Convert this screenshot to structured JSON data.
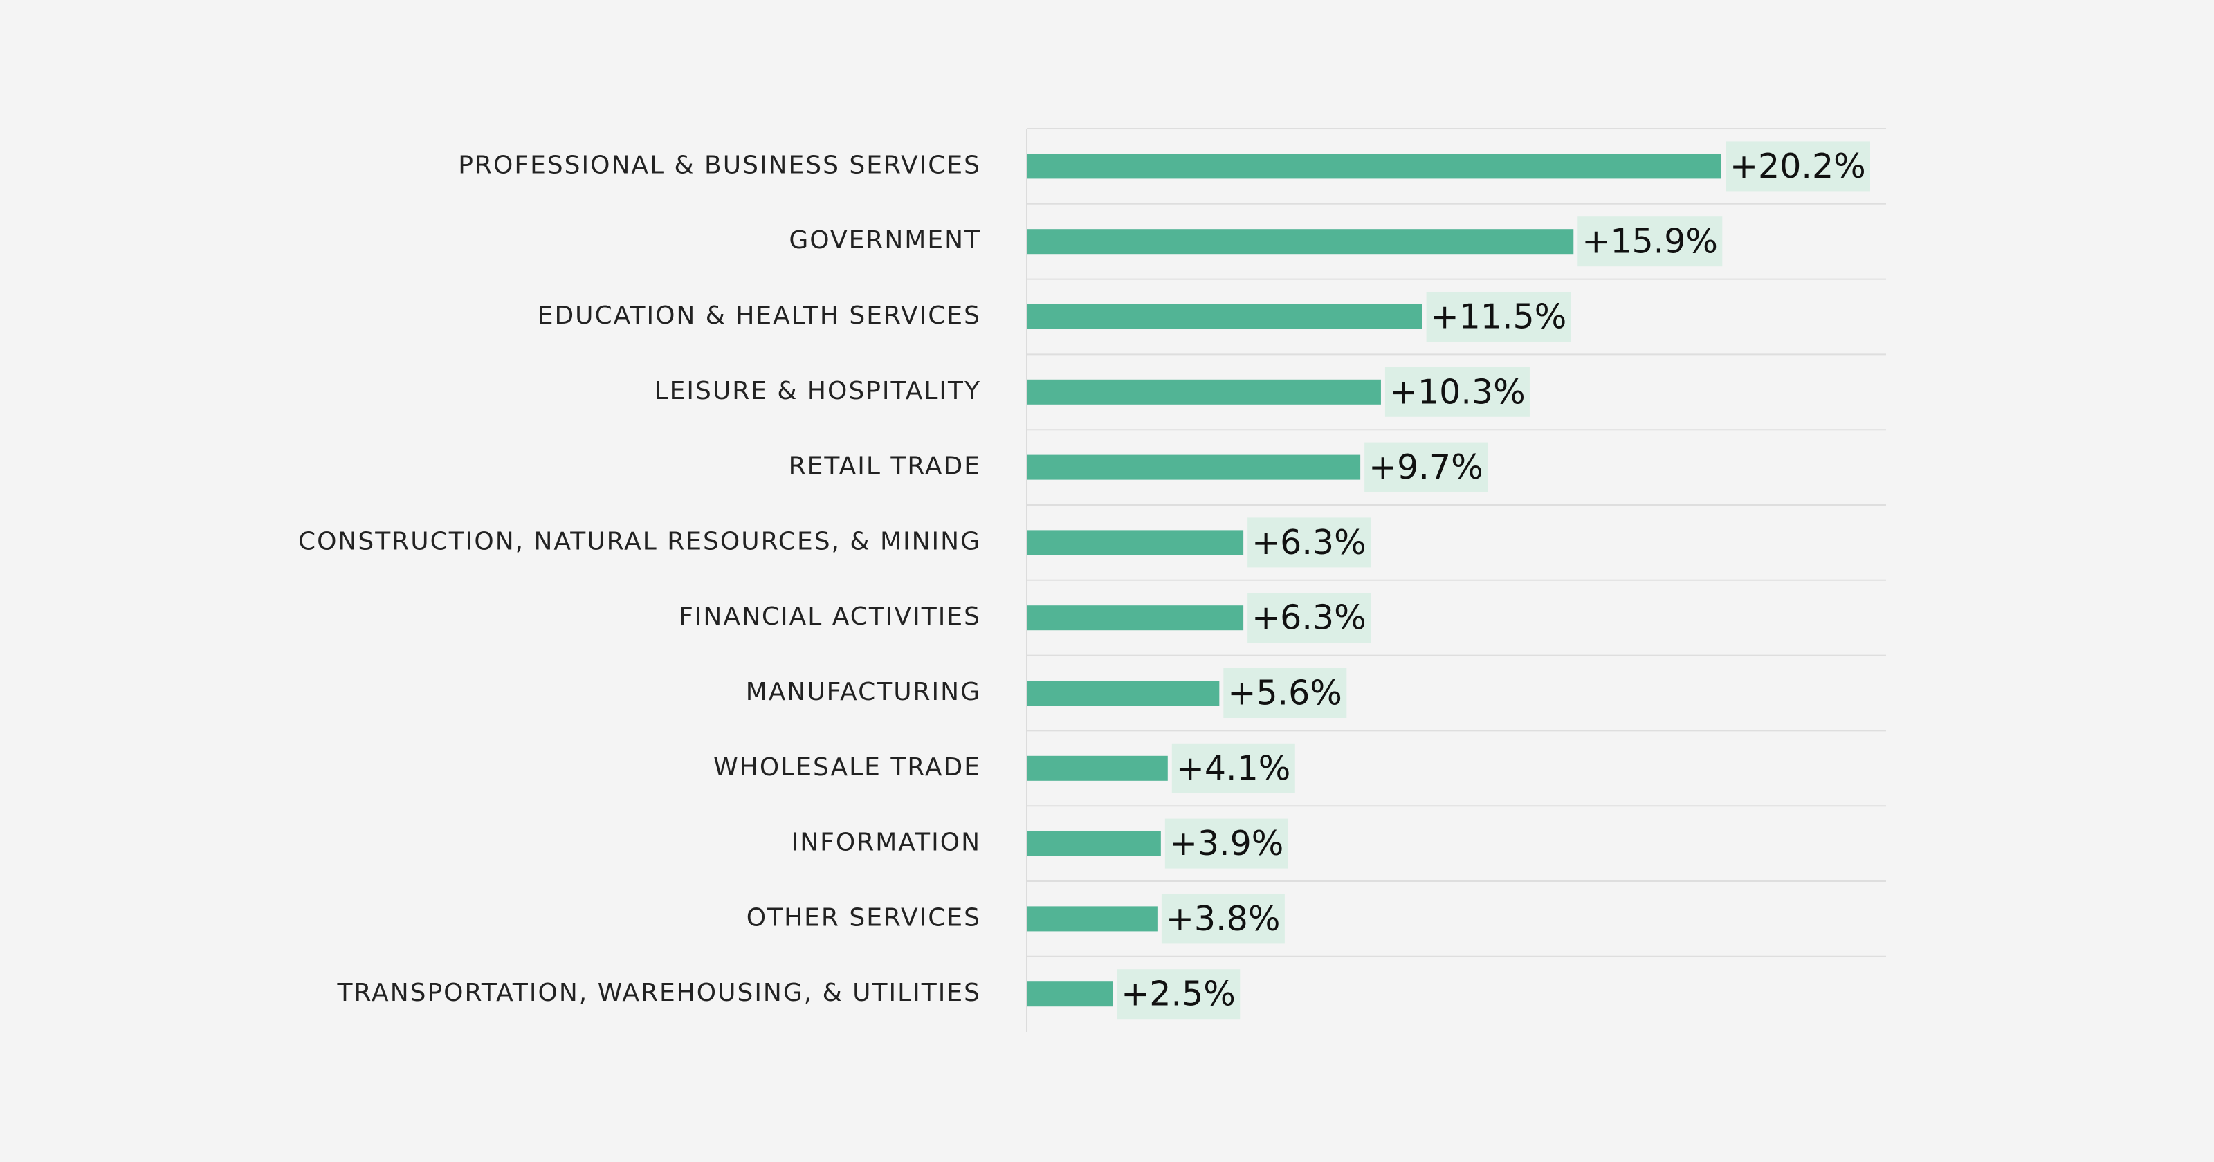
{
  "chart_data": {
    "type": "bar",
    "orientation": "horizontal",
    "categories": [
      "PROFESSIONAL & BUSINESS SERVICES",
      "GOVERNMENT",
      "EDUCATION & HEALTH SERVICES",
      "LEISURE & HOSPITALITY",
      "RETAIL TRADE",
      "CONSTRUCTION, NATURAL RESOURCES, & MINING",
      "FINANCIAL ACTIVITIES",
      "MANUFACTURING",
      "WHOLESALE TRADE",
      "INFORMATION",
      "OTHER SERVICES",
      "TRANSPORTATION, WAREHOUSING, & UTILITIES"
    ],
    "values": [
      20.2,
      15.9,
      11.5,
      10.3,
      9.7,
      6.3,
      6.3,
      5.6,
      4.1,
      3.9,
      3.8,
      2.5
    ],
    "value_labels": [
      "+20.2%",
      "+15.9%",
      "+11.5%",
      "+10.3%",
      "+9.7%",
      "+6.3%",
      "+6.3%",
      "+5.6%",
      "+4.1%",
      "+3.9%",
      "+3.8%",
      "+2.5%"
    ],
    "title": "",
    "xlabel": "",
    "ylabel": "",
    "xlim": [
      0,
      25
    ],
    "grid": true,
    "legend": "none",
    "colors": {
      "bar": "#52b495",
      "label_bg": "#dcefe6",
      "background": "#f4f4f4"
    }
  }
}
